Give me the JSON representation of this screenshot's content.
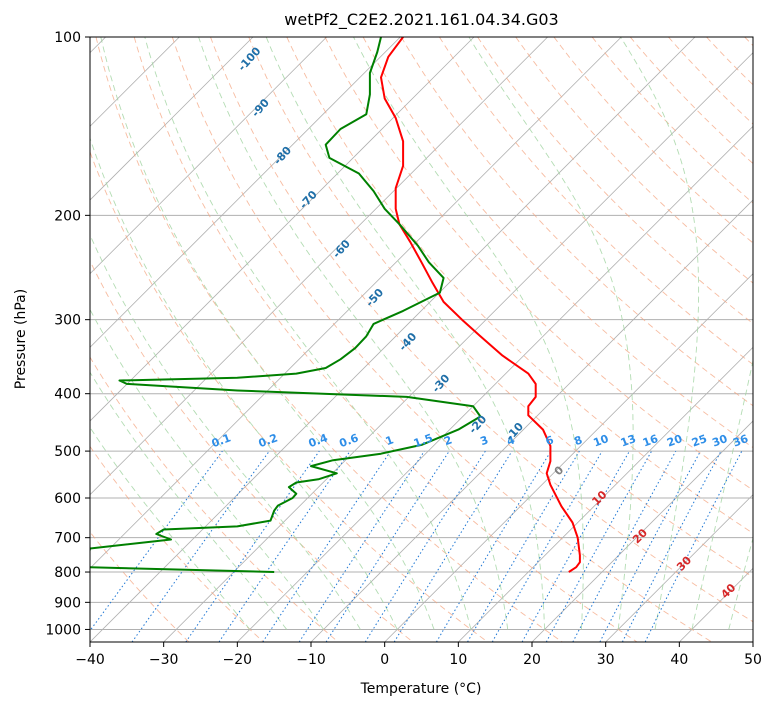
{
  "chart_data": {
    "type": "line",
    "title": "wetPf2_C2E2.2021.161.04.34.G03",
    "xlabel": "Temperature (°C)",
    "ylabel": "Pressure (hPa)",
    "xlim": [
      -40,
      50
    ],
    "ylim": [
      1050,
      100
    ],
    "y_scale": "log",
    "xticks": [
      -40,
      -30,
      -20,
      -10,
      0,
      10,
      20,
      30,
      40,
      50
    ],
    "yticks": [
      100,
      200,
      300,
      400,
      500,
      600,
      700,
      800,
      900,
      1000
    ],
    "grid": true,
    "series": [
      {
        "color": "#ff0000",
        "points": [
          [
            25,
            800
          ],
          [
            26,
            785
          ],
          [
            26.5,
            770
          ],
          [
            26.5,
            750
          ],
          [
            26.2,
            700
          ],
          [
            25.5,
            660
          ],
          [
            24,
            620
          ],
          [
            22.5,
            570
          ],
          [
            22,
            545
          ],
          [
            22.5,
            520
          ],
          [
            22.5,
            490
          ],
          [
            21.5,
            460
          ],
          [
            19.5,
            435
          ],
          [
            19.5,
            420
          ],
          [
            20.5,
            405
          ],
          [
            20.5,
            385
          ],
          [
            19.5,
            370
          ],
          [
            16,
            345
          ],
          [
            13,
            320
          ],
          [
            10.5,
            300
          ],
          [
            8,
            280
          ],
          [
            6.5,
            260
          ],
          [
            5,
            240
          ],
          [
            3.5,
            222
          ],
          [
            2,
            207
          ],
          [
            1.5,
            195
          ],
          [
            1.5,
            180
          ],
          [
            2.5,
            165
          ],
          [
            2.5,
            150
          ],
          [
            1.5,
            137
          ],
          [
            0,
            127
          ],
          [
            -0.5,
            117
          ],
          [
            0.5,
            108
          ],
          [
            2.5,
            100
          ]
        ]
      },
      {
        "color": "#008000",
        "points": [
          [
            -15,
            800
          ],
          [
            -40.5,
            785
          ],
          [
            -40,
            730
          ],
          [
            -29,
            705
          ],
          [
            -31,
            690
          ],
          [
            -30,
            678
          ],
          [
            -20,
            670
          ],
          [
            -15.5,
            655
          ],
          [
            -15,
            630
          ],
          [
            -14.5,
            618
          ],
          [
            -12.5,
            600
          ],
          [
            -12,
            590
          ],
          [
            -13,
            575
          ],
          [
            -12,
            565
          ],
          [
            -9,
            558
          ],
          [
            -6.5,
            545
          ],
          [
            -10,
            530
          ],
          [
            -7,
            518
          ],
          [
            -0.5,
            505
          ],
          [
            5,
            488
          ],
          [
            10,
            460
          ],
          [
            13,
            437
          ],
          [
            12,
            420
          ],
          [
            3,
            405
          ],
          [
            -20,
            395
          ],
          [
            -35,
            385
          ],
          [
            -36,
            380
          ],
          [
            -20,
            376
          ],
          [
            -12,
            370
          ],
          [
            -8,
            362
          ],
          [
            -6,
            350
          ],
          [
            -4,
            335
          ],
          [
            -2.5,
            320
          ],
          [
            -1.5,
            305
          ],
          [
            2.5,
            290
          ],
          [
            7.5,
            270
          ],
          [
            8,
            255
          ],
          [
            6,
            240
          ],
          [
            4.5,
            225
          ],
          [
            2,
            207
          ],
          [
            0,
            195
          ],
          [
            -1.5,
            182
          ],
          [
            -3.5,
            170
          ],
          [
            -7.5,
            160
          ],
          [
            -8,
            152
          ],
          [
            -6,
            143
          ],
          [
            -2.5,
            135
          ],
          [
            -2,
            125
          ],
          [
            -2,
            115
          ],
          [
            -1,
            106
          ],
          [
            -0.5,
            100
          ]
        ]
      }
    ],
    "dry_adiabat_labels": [
      {
        "text": "-100",
        "x": -18,
        "p": 110
      },
      {
        "text": "-90",
        "x": -16.5,
        "p": 133
      },
      {
        "text": "-80",
        "x": -13.5,
        "p": 160
      },
      {
        "text": "-70",
        "x": -10,
        "p": 190
      },
      {
        "text": "-60",
        "x": -5.5,
        "p": 230
      },
      {
        "text": "-50",
        "x": -1,
        "p": 278
      },
      {
        "text": "-40",
        "x": 3.5,
        "p": 330
      },
      {
        "text": "-30",
        "x": 8,
        "p": 388
      },
      {
        "text": "-20",
        "x": 13,
        "p": 455
      },
      {
        "text": "-10",
        "x": 18,
        "p": 468
      }
    ],
    "moist_adiabat_labels": [
      {
        "text": "0",
        "x": 24,
        "p": 545
      },
      {
        "text": "10",
        "x": 29.5,
        "p": 606
      },
      {
        "text": "20",
        "x": 35,
        "p": 703
      },
      {
        "text": "30",
        "x": 41,
        "p": 782
      },
      {
        "text": "40",
        "x": 47,
        "p": 870
      }
    ],
    "mixing_ratio_labels": [
      "0.1",
      "0.2",
      "0.4",
      "0.6",
      "1",
      "1.5",
      "2",
      "3",
      "4",
      "6",
      "8",
      "10",
      "13",
      "16",
      "20",
      "25",
      "30",
      "36"
    ]
  },
  "colors": {
    "temperature": "#ff0000",
    "dewpoint": "#008000",
    "dry_adiabat": "#f4a582",
    "moist_adiabat": "#a6d6a6",
    "mixing_ratio": "#1f77d4",
    "isotherm": "#b0b0b0",
    "dry_label": "#1f6fa8",
    "moist_label": "#d62728",
    "mixing_label": "#2e8ee8"
  }
}
